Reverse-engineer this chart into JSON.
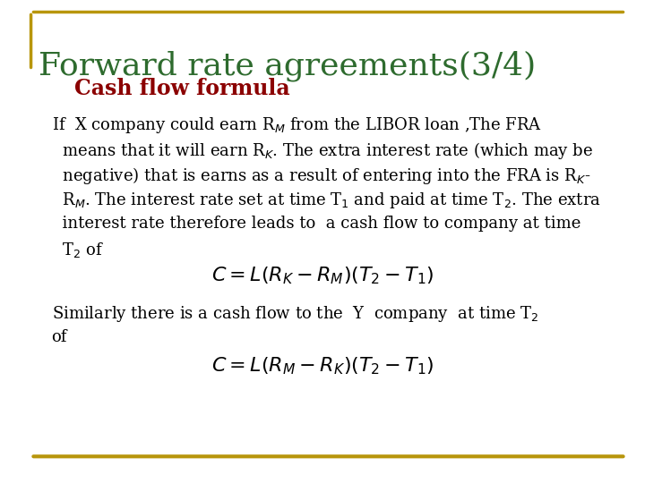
{
  "title": "Forward rate agreements(3/4)",
  "subtitle": "Cash flow formula",
  "title_color": "#2E6B2E",
  "subtitle_color": "#8B0000",
  "bg_color": "#FFFFFF",
  "border_color": "#B8960C",
  "body_text_color": "#000000",
  "formula1": "$C = L(R_K - R_M)(T_2 - T_1)$",
  "formula2": "$C = L(R_M - R_K)(T_2 - T_1)$",
  "font_size_title": 26,
  "font_size_subtitle": 17,
  "font_size_body": 13,
  "font_size_formula": 16
}
